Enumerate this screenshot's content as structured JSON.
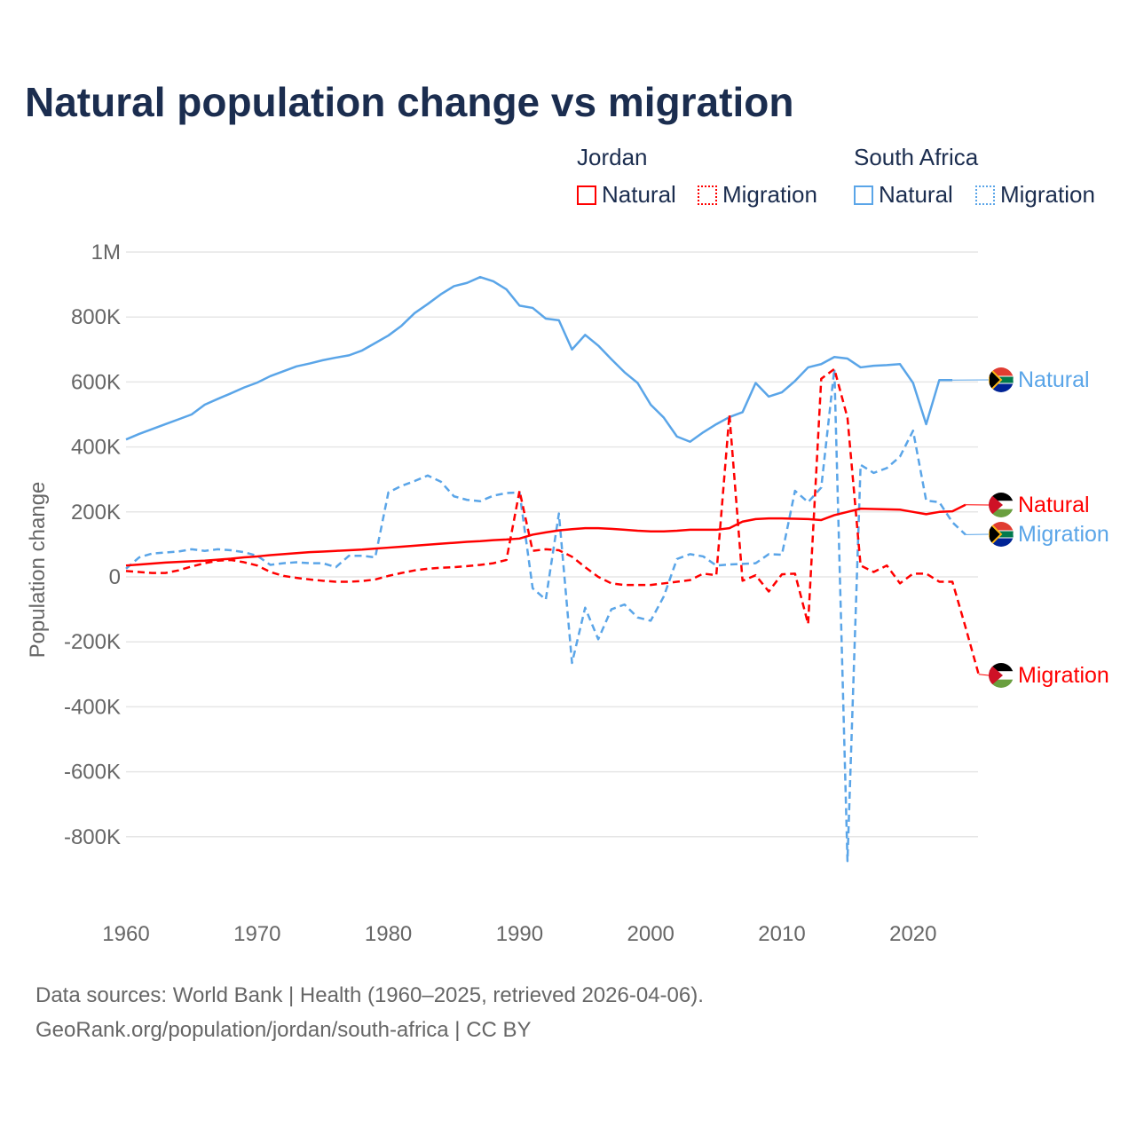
{
  "chart_data": {
    "type": "line",
    "title": "Natural population change vs migration",
    "ylabel": "Population change",
    "xlabel": "",
    "ylim": [
      -1000000,
      1000000
    ],
    "xlim": [
      1960,
      2025
    ],
    "yticks": [
      1000000,
      800000,
      600000,
      400000,
      200000,
      0,
      -200000,
      -400000,
      -600000,
      -800000
    ],
    "ytick_labels": [
      "1M",
      "800K",
      "600K",
      "400K",
      "200K",
      "0",
      "-200K",
      "-400K",
      "-600K",
      "-800K"
    ],
    "xticks": [
      1960,
      1970,
      1980,
      1990,
      2000,
      2010,
      2020
    ],
    "xtick_labels": [
      "1960",
      "1970",
      "1980",
      "1990",
      "2000",
      "2010",
      "2020"
    ],
    "grid": true,
    "legend": {
      "groups": [
        {
          "name": "Jordan",
          "items": [
            "Natural",
            "Migration"
          ]
        },
        {
          "name": "South Africa",
          "items": [
            "Natural",
            "Migration"
          ]
        }
      ],
      "placement": "top-right"
    },
    "series": [
      {
        "name": "South Africa Natural",
        "country": "South Africa",
        "kind": "Natural",
        "color": "#5aa5e8",
        "dashed": false,
        "start": 1960,
        "values": [
          423,
          440,
          455,
          470,
          485,
          500,
          530,
          548,
          565,
          583,
          598,
          618,
          633,
          648,
          657,
          667,
          675,
          682,
          697,
          720,
          743,
          773,
          812,
          840,
          870,
          895,
          905,
          923,
          910,
          885,
          835,
          828,
          795,
          790,
          700,
          745,
          712,
          670,
          630,
          597,
          530,
          490,
          432,
          416,
          445,
          470,
          492,
          507,
          597,
          555,
          568,
          603,
          645,
          655,
          677,
          672,
          645,
          650,
          652,
          655,
          597,
          470,
          606,
          606
        ]
      },
      {
        "name": "South Africa Migration",
        "country": "South Africa",
        "kind": "Migration",
        "color": "#5aa5e8",
        "dashed": true,
        "start": 1960,
        "values": [
          25,
          60,
          72,
          75,
          78,
          85,
          80,
          85,
          82,
          76,
          65,
          37,
          42,
          45,
          42,
          42,
          30,
          65,
          65,
          60,
          260,
          280,
          295,
          312,
          293,
          248,
          237,
          233,
          250,
          258,
          260,
          -35,
          -70,
          195,
          -265,
          -95,
          -192,
          -100,
          -85,
          -125,
          -135,
          -60,
          55,
          70,
          63,
          35,
          38,
          40,
          42,
          70,
          68,
          265,
          230,
          275,
          640,
          -875,
          345,
          320,
          335,
          370,
          450,
          235,
          230,
          168,
          130
        ]
      },
      {
        "name": "Jordan Natural",
        "country": "Jordan",
        "kind": "Natural",
        "color": "#ff0000",
        "dashed": false,
        "start": 1960,
        "values": [
          35,
          38,
          41,
          44,
          46,
          48,
          50,
          53,
          56,
          60,
          63,
          67,
          70,
          73,
          76,
          78,
          80,
          82,
          84,
          87,
          90,
          93,
          96,
          99,
          102,
          105,
          108,
          110,
          113,
          115,
          118,
          130,
          137,
          143,
          147,
          150,
          150,
          148,
          145,
          142,
          140,
          140,
          142,
          145,
          145,
          145,
          150,
          170,
          178,
          180,
          180,
          179,
          178,
          175,
          190,
          200,
          210,
          209,
          208,
          207,
          200,
          193,
          200,
          202,
          222
        ]
      },
      {
        "name": "Jordan Migration",
        "country": "Jordan",
        "kind": "Migration",
        "color": "#ff0000",
        "dashed": true,
        "start": 1960,
        "values": [
          18,
          15,
          12,
          12,
          20,
          32,
          42,
          50,
          52,
          45,
          35,
          15,
          3,
          -3,
          -8,
          -12,
          -15,
          -15,
          -13,
          -8,
          3,
          12,
          20,
          25,
          28,
          30,
          33,
          37,
          42,
          52,
          265,
          80,
          85,
          82,
          62,
          30,
          0,
          -20,
          -25,
          -25,
          -25,
          -20,
          -15,
          -10,
          10,
          5,
          500,
          -12,
          5,
          -45,
          8,
          10,
          -145,
          610,
          640,
          490,
          35,
          15,
          35,
          -20,
          10,
          10,
          -15,
          -15,
          -155,
          -300
        ]
      }
    ],
    "value_unit": "thousands",
    "end_labels": [
      {
        "series": "South Africa Natural",
        "text": "Natural",
        "flag": "south-africa",
        "color": "#5aa5e8"
      },
      {
        "series": "Jordan Natural",
        "text": "Natural",
        "flag": "jordan",
        "color": "#ff0000"
      },
      {
        "series": "South Africa Migration",
        "text": "Migration",
        "flag": "south-africa",
        "color": "#5aa5e8"
      },
      {
        "series": "Jordan Migration",
        "text": "Migration",
        "flag": "jordan",
        "color": "#ff0000"
      }
    ]
  },
  "legend": {
    "jordan": "Jordan",
    "south_africa": "South Africa",
    "natural": "Natural",
    "migration": "Migration"
  },
  "source": {
    "line1": "Data sources: World Bank | Health (1960–2025, retrieved 2026-04-06).",
    "line2": "GeoRank.org/population/jordan/south-africa | CC BY"
  }
}
